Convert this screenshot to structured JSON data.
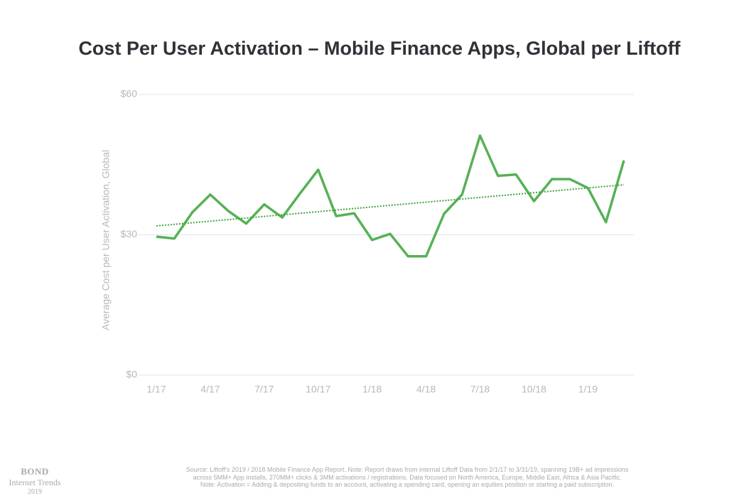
{
  "chart_data": {
    "type": "line",
    "title": "Cost Per User Activation – Mobile Finance Apps, Global per Liftoff",
    "y_label": "Average Cost per User Activation, Global",
    "categories": [
      "1/17",
      null,
      null,
      "4/17",
      null,
      null,
      "7/17",
      null,
      null,
      "10/17",
      null,
      null,
      "1/18",
      null,
      null,
      "4/18",
      null,
      null,
      "7/18",
      null,
      null,
      "10/18",
      null,
      null,
      "1/19",
      null,
      null
    ],
    "series": [
      {
        "color": "#56b156",
        "values": [
          29.6,
          29.2,
          34.8,
          38.6,
          35.1,
          32.4,
          36.5,
          33.7,
          38.9,
          43.9,
          34.0,
          34.6,
          28.9,
          30.2,
          25.4,
          25.4,
          34.5,
          38.6,
          51.2,
          42.6,
          42.9,
          37.2,
          41.9,
          41.9,
          40.0,
          32.7,
          45.9
        ]
      }
    ],
    "trendline": {
      "start": 31.9,
      "end": 40.7,
      "color": "#3fa43f"
    },
    "ylim": [
      0,
      60
    ],
    "yticks": [
      {
        "value": 0,
        "label": "$0"
      },
      {
        "value": 30,
        "label": "$30"
      },
      {
        "value": 60,
        "label": "$60"
      }
    ],
    "grid": true
  },
  "footer": {
    "brand": "BOND",
    "subtitle": "Internet Trends",
    "year": "2019",
    "source": [
      "Source: Liftoff's 2019 / 2018 Mobile Finance App Report.  Note: Report draws from internal Liftoff Data from 2/1/17 to 3/31/19, spanning 19B+ ad impressions",
      "across 5MM+ App installs, 270MM+ clicks & 3MM activations / registrations.  Data focused on North America, Europe, Middle East, Africa & Asia Pacific.",
      "Note: Activation =  Adding & depositing funds to an account, activating a spending card, opening an equities position or starting a paid subscription."
    ]
  }
}
